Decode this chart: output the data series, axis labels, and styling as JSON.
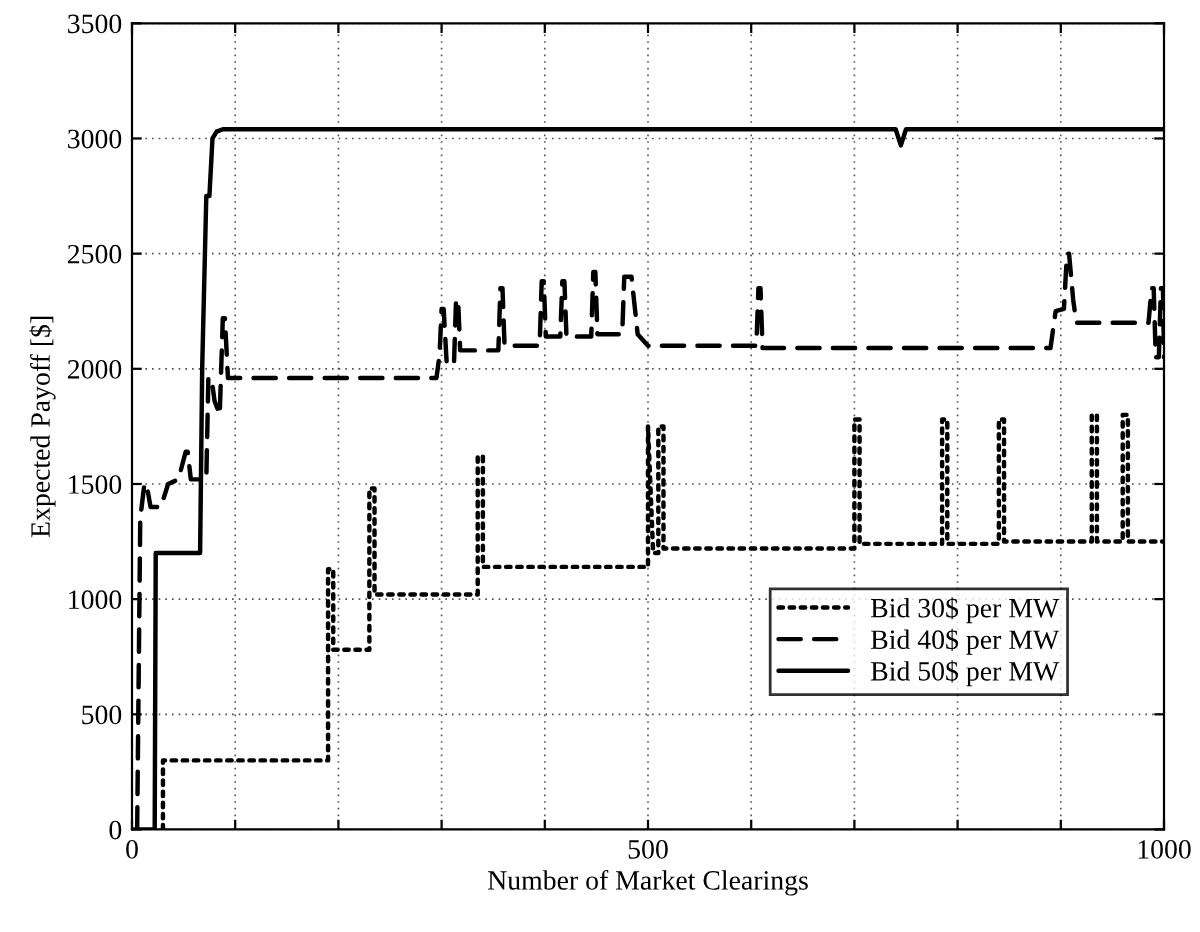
{
  "chart_data": {
    "type": "line",
    "xlabel": "Number of Market Clearings",
    "ylabel": "Expected Payoff [$]",
    "xlim": [
      0,
      1000
    ],
    "ylim": [
      0,
      3500
    ],
    "xticks": [
      0,
      {
        "value": 100,
        "label": null
      },
      {
        "value": 200,
        "label": null
      },
      {
        "value": 300,
        "label": null
      },
      {
        "value": 400,
        "label": null
      },
      500,
      {
        "value": 600,
        "label": null
      },
      {
        "value": 700,
        "label": null
      },
      {
        "value": 800,
        "label": null
      },
      {
        "value": 900,
        "label": null
      },
      1000
    ],
    "yticks": [
      0,
      500,
      1000,
      1500,
      2000,
      2500,
      3000,
      3500
    ],
    "grid": true,
    "legend": "lower right",
    "series": [
      {
        "name": "Bid 30$ per MW",
        "color": "#000000",
        "line_style": "dotted",
        "x": [
          30,
          30,
          185,
          190,
          190,
          195,
          195,
          225,
          230,
          230,
          235,
          235,
          330,
          335,
          335,
          340,
          340,
          495,
          500,
          500,
          505,
          510,
          510,
          515,
          515,
          695,
          700,
          700,
          705,
          705,
          780,
          785,
          785,
          790,
          790,
          835,
          840,
          840,
          845,
          845,
          925,
          930,
          930,
          935,
          935,
          955,
          960,
          960,
          965,
          965,
          1000
        ],
        "values": [
          0,
          300,
          300,
          300,
          1130,
          1130,
          780,
          780,
          780,
          1480,
          1480,
          1020,
          1020,
          1020,
          1620,
          1620,
          1140,
          1140,
          1140,
          1750,
          1200,
          1200,
          1750,
          1750,
          1220,
          1220,
          1220,
          1780,
          1780,
          1240,
          1240,
          1240,
          1780,
          1780,
          1240,
          1240,
          1240,
          1780,
          1780,
          1250,
          1250,
          1250,
          1800,
          1800,
          1250,
          1250,
          1250,
          1800,
          1800,
          1250,
          1250
        ]
      },
      {
        "name": "Bid 40$ per MW",
        "color": "#000000",
        "line_style": "dashed",
        "x": [
          5,
          8,
          12,
          14,
          18,
          28,
          35,
          45,
          52,
          54,
          57,
          72,
          74,
          77,
          80,
          85,
          88,
          90,
          93,
          295,
          298,
          300,
          302,
          305,
          312,
          314,
          316,
          318,
          355,
          357,
          359,
          361,
          395,
          397,
          399,
          401,
          415,
          417,
          419,
          421,
          445,
          447,
          449,
          451,
          475,
          477,
          484,
          490,
          500,
          605,
          607,
          609,
          611,
          890,
          895,
          903,
          906,
          908,
          912,
          915,
          985,
          988,
          990,
          992,
          995,
          997,
          999,
          1000
        ],
        "values": [
          0,
          1350,
          1500,
          1500,
          1400,
          1400,
          1500,
          1520,
          1640,
          1640,
          1520,
          1520,
          1960,
          1960,
          1860,
          1800,
          2220,
          2220,
          1960,
          1960,
          2060,
          2260,
          2260,
          2020,
          2020,
          2300,
          2300,
          2080,
          2080,
          2350,
          2350,
          2100,
          2100,
          2380,
          2380,
          2140,
          2140,
          2380,
          2380,
          2140,
          2140,
          2420,
          2420,
          2150,
          2150,
          2400,
          2400,
          2150,
          2100,
          2100,
          2350,
          2350,
          2090,
          2090,
          2250,
          2260,
          2500,
          2500,
          2300,
          2200,
          2200,
          2350,
          2350,
          2050,
          2050,
          2350,
          2350,
          2050
        ]
      },
      {
        "name": "Bid 50$ per MW",
        "color": "#000000",
        "line_style": "solid",
        "x": [
          0,
          22,
          23,
          66,
          68,
          72,
          75,
          78,
          82,
          88,
          740,
          745,
          750,
          1000
        ],
        "values": [
          0,
          0,
          1200,
          1200,
          2000,
          2750,
          2750,
          3000,
          3030,
          3040,
          3040,
          2970,
          3040,
          3040
        ]
      }
    ]
  }
}
